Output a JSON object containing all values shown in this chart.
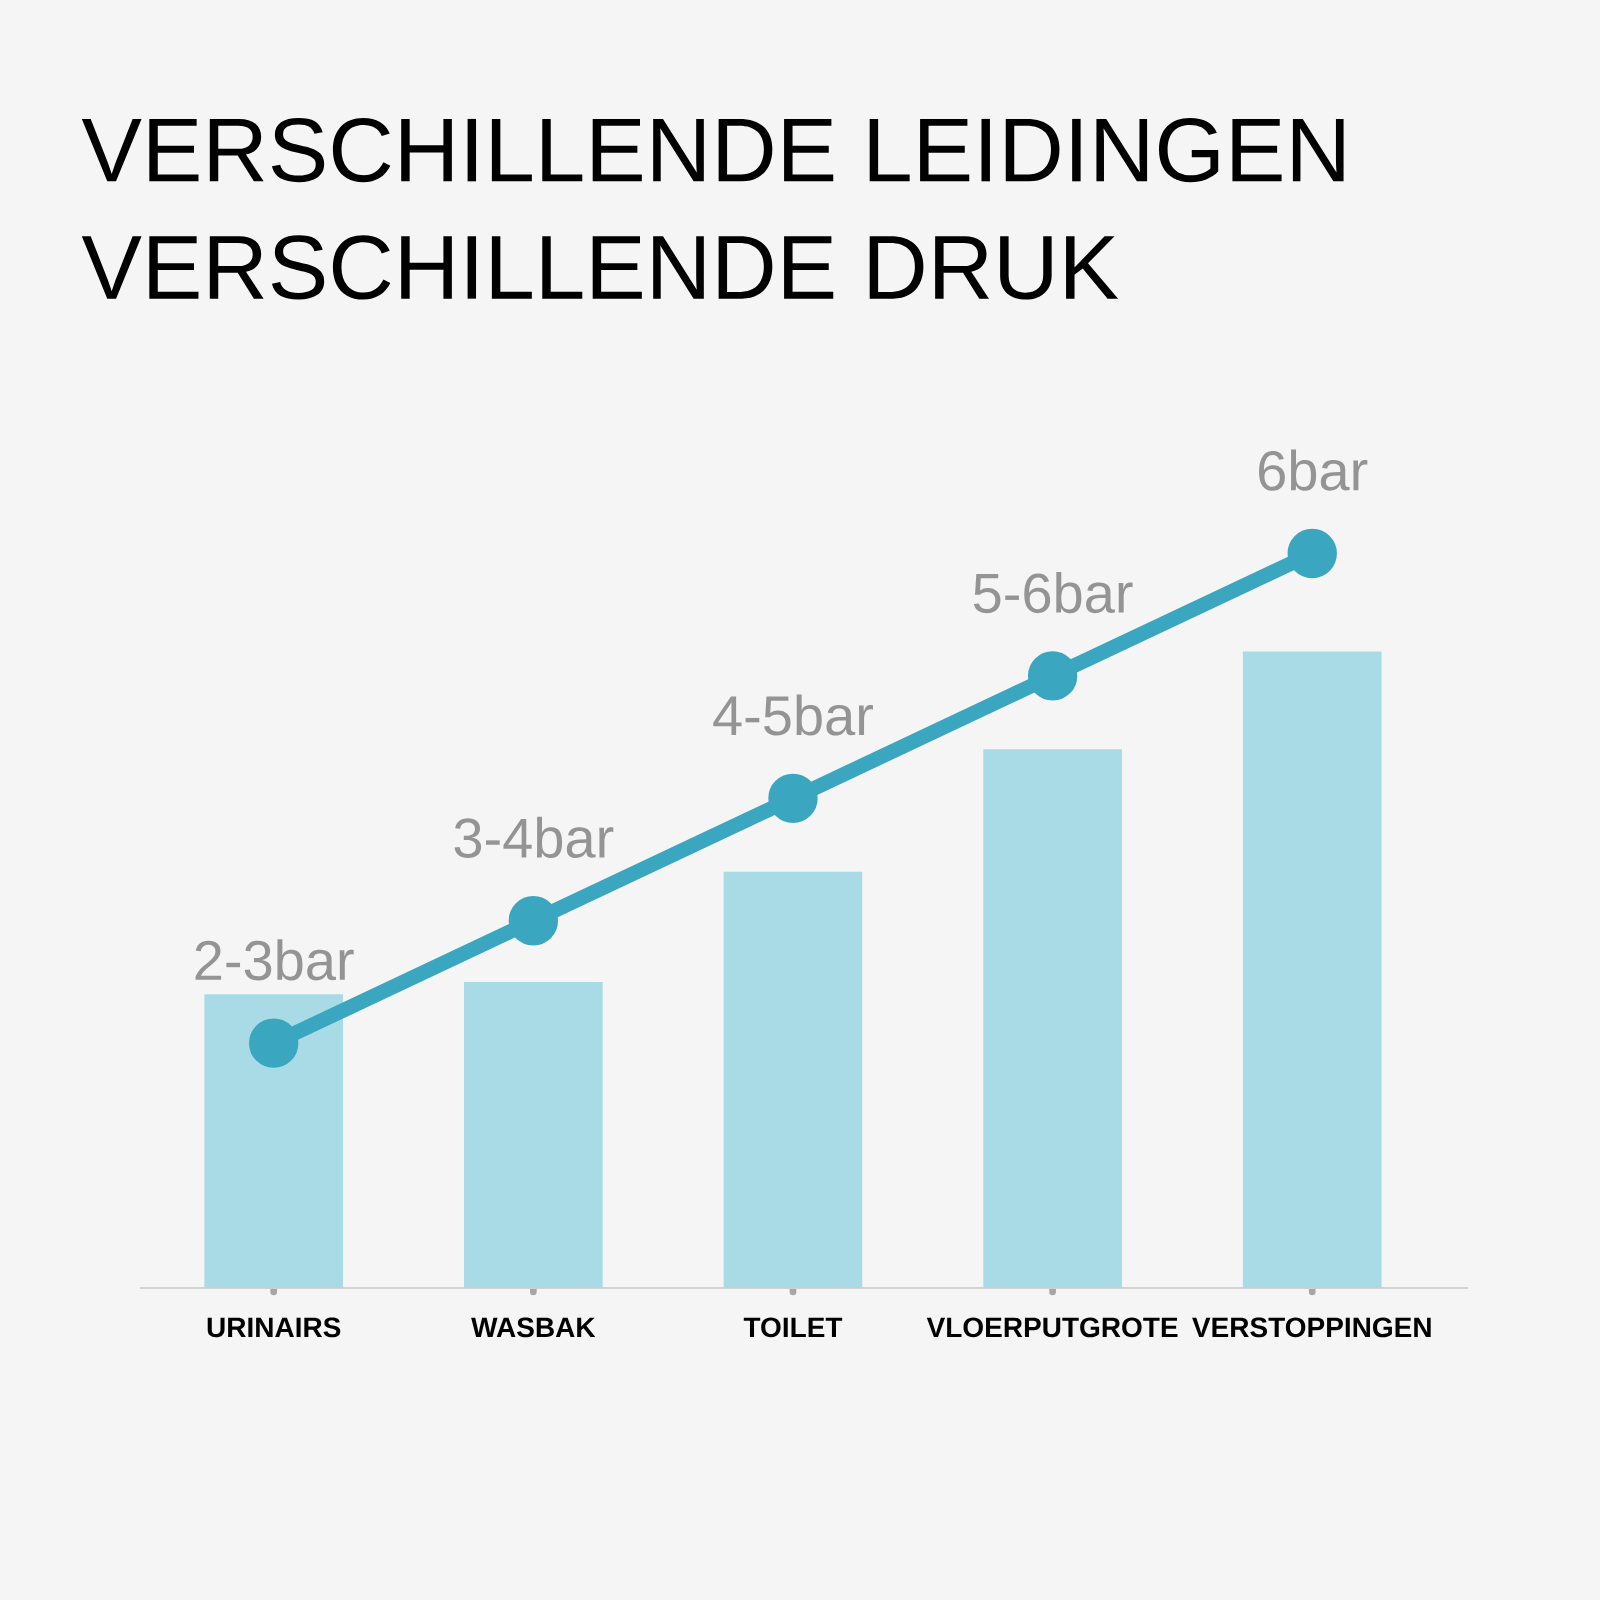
{
  "chart_data": {
    "type": "bar",
    "title": "VERSCHILLENDE LEIDINGEN",
    "subtitle": "VERSCHILLENDE DRUK",
    "categories": [
      "URINAIRS",
      "WASBAK",
      "TOILET",
      "VLOERPUTGROTE",
      "VERSTOPPINGEN"
    ],
    "tick_labels": "x",
    "marker": "circle",
    "series": [
      {
        "color": "#a8dbe5",
        "values": [
          2.4,
          2.5,
          3.4,
          4.4,
          5.2
        ]
      },
      {
        "type": "line",
        "color": "#3aa6bf",
        "values": [
          2,
          3,
          4,
          5,
          6
        ],
        "value_labels": [
          "2-3bar",
          "3-4bar",
          "4-5bar",
          "5-6bar",
          "6bar"
        ]
      }
    ]
  }
}
